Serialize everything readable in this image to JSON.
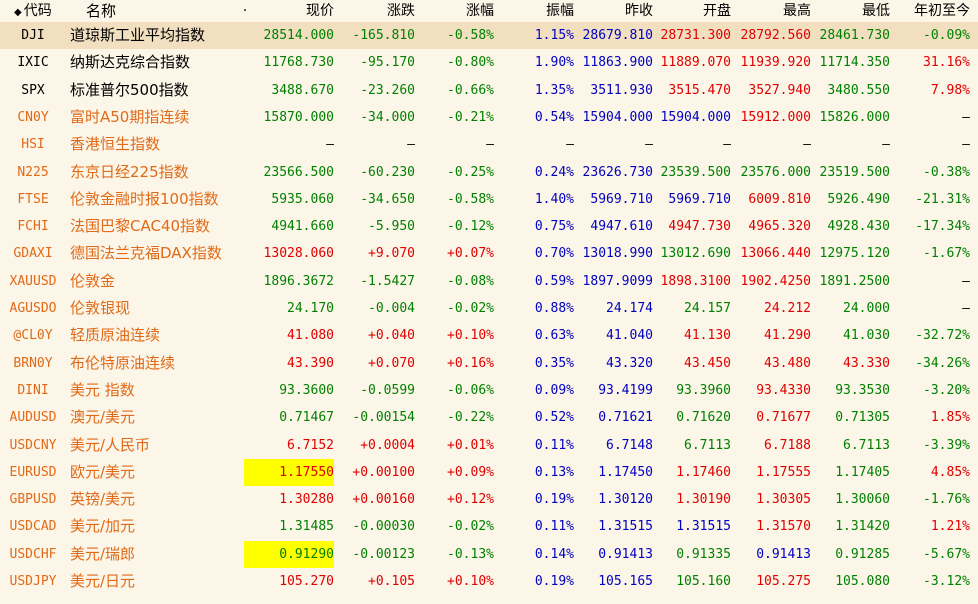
{
  "header": {
    "code": "代码",
    "name": "名称",
    "dot": "·",
    "price": "现价",
    "change": "涨跌",
    "pct": "涨幅",
    "amplitude": "振幅",
    "prev_close": "昨收",
    "open": "开盘",
    "high": "最高",
    "low": "最低",
    "ytd": "年初至今"
  },
  "rows": [
    {
      "code": "DJI",
      "name": "道琼斯工业平均指数",
      "price": "28514.000",
      "change": "-165.810",
      "pct": "-0.58%",
      "amp": "1.15%",
      "prev": "28679.810",
      "open": "28731.300",
      "high": "28792.560",
      "low": "28461.730",
      "ytd": "-0.09%"
    },
    {
      "code": "IXIC",
      "name": "纳斯达克综合指数",
      "price": "11768.730",
      "change": "-95.170",
      "pct": "-0.80%",
      "amp": "1.90%",
      "prev": "11863.900",
      "open": "11889.070",
      "high": "11939.920",
      "low": "11714.350",
      "ytd": "31.16%"
    },
    {
      "code": "SPX",
      "name": "标准普尔500指数",
      "price": "3488.670",
      "change": "-23.260",
      "pct": "-0.66%",
      "amp": "1.35%",
      "prev": "3511.930",
      "open": "3515.470",
      "high": "3527.940",
      "low": "3480.550",
      "ytd": "7.98%"
    },
    {
      "code": "CN0Y",
      "name": "富时A50期指连续",
      "price": "15870.000",
      "change": "-34.000",
      "pct": "-0.21%",
      "amp": "0.54%",
      "prev": "15904.000",
      "open": "15904.000",
      "high": "15912.000",
      "low": "15826.000",
      "ytd": "–"
    },
    {
      "code": "HSI",
      "name": "香港恒生指数",
      "price": "–",
      "change": "–",
      "pct": "–",
      "amp": "–",
      "prev": "–",
      "open": "–",
      "high": "–",
      "low": "–",
      "ytd": "–"
    },
    {
      "code": "N225",
      "name": "东京日经225指数",
      "price": "23566.500",
      "change": "-60.230",
      "pct": "-0.25%",
      "amp": "0.24%",
      "prev": "23626.730",
      "open": "23539.500",
      "high": "23576.000",
      "low": "23519.500",
      "ytd": "-0.38%"
    },
    {
      "code": "FTSE",
      "name": "伦敦金融时报100指数",
      "price": "5935.060",
      "change": "-34.650",
      "pct": "-0.58%",
      "amp": "1.40%",
      "prev": "5969.710",
      "open": "5969.710",
      "high": "6009.810",
      "low": "5926.490",
      "ytd": "-21.31%"
    },
    {
      "code": "FCHI",
      "name": "法国巴黎CAC40指数",
      "price": "4941.660",
      "change": "-5.950",
      "pct": "-0.12%",
      "amp": "0.75%",
      "prev": "4947.610",
      "open": "4947.730",
      "high": "4965.320",
      "low": "4928.430",
      "ytd": "-17.34%"
    },
    {
      "code": "GDAXI",
      "name": "德国法兰克福DAX指数",
      "price": "13028.060",
      "change": "+9.070",
      "pct": "+0.07%",
      "amp": "0.70%",
      "prev": "13018.990",
      "open": "13012.690",
      "high": "13066.440",
      "low": "12975.120",
      "ytd": "-1.67%"
    },
    {
      "code": "XAUUSD",
      "name": "伦敦金",
      "price": "1896.3672",
      "change": "-1.5427",
      "pct": "-0.08%",
      "amp": "0.59%",
      "prev": "1897.9099",
      "open": "1898.3100",
      "high": "1902.4250",
      "low": "1891.2500",
      "ytd": "–"
    },
    {
      "code": "AGUSDO",
      "name": "伦敦银现",
      "price": "24.170",
      "change": "-0.004",
      "pct": "-0.02%",
      "amp": "0.88%",
      "prev": "24.174",
      "open": "24.157",
      "high": "24.212",
      "low": "24.000",
      "ytd": "–"
    },
    {
      "code": "@CL0Y",
      "name": "轻质原油连续",
      "price": "41.080",
      "change": "+0.040",
      "pct": "+0.10%",
      "amp": "0.63%",
      "prev": "41.040",
      "open": "41.130",
      "high": "41.290",
      "low": "41.030",
      "ytd": "-32.72%"
    },
    {
      "code": "BRN0Y",
      "name": "布伦特原油连续",
      "price": "43.390",
      "change": "+0.070",
      "pct": "+0.16%",
      "amp": "0.35%",
      "prev": "43.320",
      "open": "43.450",
      "high": "43.480",
      "low": "43.330",
      "ytd": "-34.26%"
    },
    {
      "code": "DINI",
      "name": "美元 指数",
      "price": "93.3600",
      "change": "-0.0599",
      "pct": "-0.06%",
      "amp": "0.09%",
      "prev": "93.4199",
      "open": "93.3960",
      "high": "93.4330",
      "low": "93.3530",
      "ytd": "-3.20%"
    },
    {
      "code": "AUDUSD",
      "name": "澳元/美元",
      "price": "0.71467",
      "change": "-0.00154",
      "pct": "-0.22%",
      "amp": "0.52%",
      "prev": "0.71621",
      "open": "0.71620",
      "high": "0.71677",
      "low": "0.71305",
      "ytd": "1.85%"
    },
    {
      "code": "USDCNY",
      "name": "美元/人民币",
      "price": "6.7152",
      "change": "+0.0004",
      "pct": "+0.01%",
      "amp": "0.11%",
      "prev": "6.7148",
      "open": "6.7113",
      "high": "6.7188",
      "low": "6.7113",
      "ytd": "-3.39%"
    },
    {
      "code": "EURUSD",
      "name": "欧元/美元",
      "price": "1.17550",
      "change": "+0.00100",
      "pct": "+0.09%",
      "amp": "0.13%",
      "prev": "1.17450",
      "open": "1.17460",
      "high": "1.17555",
      "low": "1.17405",
      "ytd": "4.85%"
    },
    {
      "code": "GBPUSD",
      "name": "英镑/美元",
      "price": "1.30280",
      "change": "+0.00160",
      "pct": "+0.12%",
      "amp": "0.19%",
      "prev": "1.30120",
      "open": "1.30190",
      "high": "1.30305",
      "low": "1.30060",
      "ytd": "-1.76%"
    },
    {
      "code": "USDCAD",
      "name": "美元/加元",
      "price": "1.31485",
      "change": "-0.00030",
      "pct": "-0.02%",
      "amp": "0.11%",
      "prev": "1.31515",
      "open": "1.31515",
      "high": "1.31570",
      "low": "1.31420",
      "ytd": "1.21%"
    },
    {
      "code": "USDCHF",
      "name": "美元/瑞郎",
      "price": "0.91290",
      "change": "-0.00123",
      "pct": "-0.13%",
      "amp": "0.14%",
      "prev": "0.91413",
      "open": "0.91335",
      "high": "0.91413",
      "low": "0.91285",
      "ytd": "-5.67%"
    },
    {
      "code": "USDJPY",
      "name": "美元/日元",
      "price": "105.270",
      "change": "+0.105",
      "pct": "+0.10%",
      "amp": "0.19%",
      "prev": "105.165",
      "open": "105.160",
      "high": "105.275",
      "low": "105.080",
      "ytd": "-3.12%"
    }
  ],
  "colors": {
    "up": "#e00000",
    "down": "#008000",
    "flat": "#0000c0",
    "highlight": "#ffff00",
    "selected_row": "#f1dfc0",
    "orange_label": "#e06a18"
  }
}
